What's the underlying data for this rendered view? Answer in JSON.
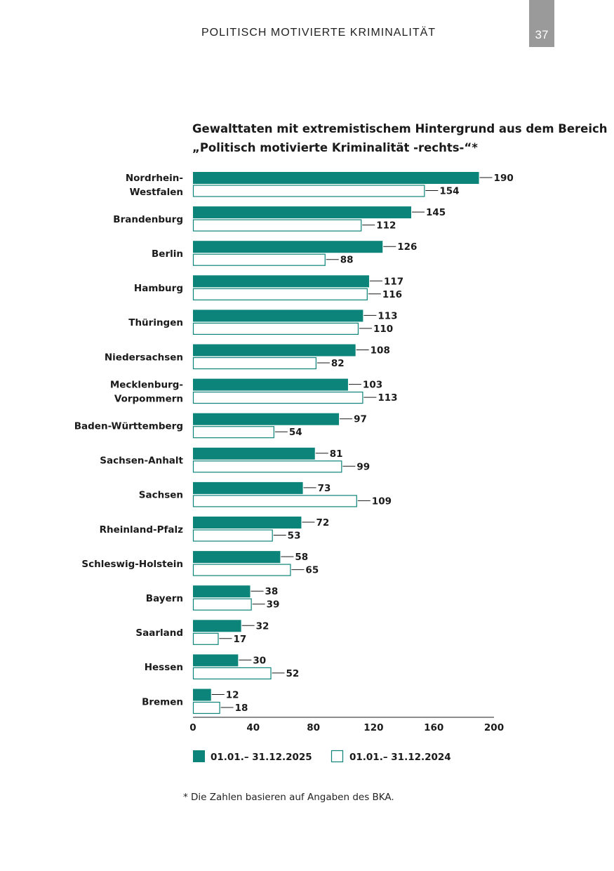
{
  "header": {
    "running_title": "POLITISCH MOTIVIERTE KRIMINALITÄT",
    "page_number": "37"
  },
  "footnote": "* Die Zahlen basieren auf Angaben des BKA.",
  "colors": {
    "series_2025": "#0c8479",
    "series_2024": "#ffffff",
    "outline": "#0c8479",
    "page_tab": "#9a9a9a"
  },
  "chart_data": {
    "type": "bar",
    "orientation": "horizontal",
    "title_lines": [
      "Gewalttaten mit extremistischem Hintergrund aus dem Bereich",
      "„Politisch motivierte Kriminalität -rechts-“*"
    ],
    "categories": [
      [
        "Nordrhein-",
        "Westfalen"
      ],
      [
        "Brandenburg"
      ],
      [
        "Berlin"
      ],
      [
        "Hamburg"
      ],
      [
        "Thüringen"
      ],
      [
        "Niedersachsen"
      ],
      [
        "Mecklenburg-",
        "Vorpommern"
      ],
      [
        "Baden-Württemberg"
      ],
      [
        "Sachsen-Anhalt"
      ],
      [
        "Sachsen"
      ],
      [
        "Rheinland-Pfalz"
      ],
      [
        "Schleswig-Holstein"
      ],
      [
        "Bayern"
      ],
      [
        "Saarland"
      ],
      [
        "Hessen"
      ],
      [
        "Bremen"
      ]
    ],
    "series": [
      {
        "name": "01.01.– 31.12.2025",
        "values": [
          190,
          145,
          126,
          117,
          113,
          108,
          103,
          97,
          81,
          73,
          72,
          58,
          38,
          32,
          30,
          12
        ]
      },
      {
        "name": "01.01.– 31.12.2024",
        "values": [
          154,
          112,
          88,
          116,
          110,
          82,
          113,
          54,
          99,
          109,
          53,
          65,
          39,
          17,
          52,
          18
        ]
      }
    ],
    "xlim": [
      0,
      200
    ],
    "xticks": [
      0,
      40,
      80,
      120,
      160,
      200
    ],
    "grid": false,
    "legend_position": "bottom"
  }
}
